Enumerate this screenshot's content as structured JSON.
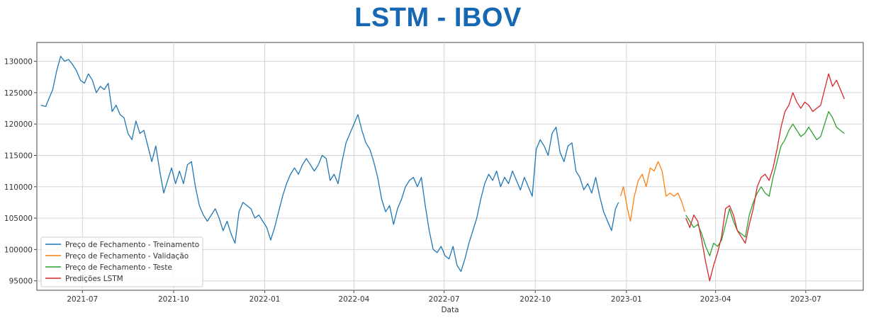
{
  "title": "LSTM - IBOV",
  "chart_data": {
    "type": "line",
    "xlabel": "Data",
    "ylabel": "",
    "ylim": [
      93500,
      133000
    ],
    "x_range": [
      "2021-05-16",
      "2023-08-28"
    ],
    "grid": true,
    "legend_position": "lower-left",
    "yticks": [
      95000,
      100000,
      105000,
      110000,
      115000,
      120000,
      125000,
      130000
    ],
    "xticks": [
      {
        "date": "2021-07-01",
        "label": "2021-07"
      },
      {
        "date": "2021-10-01",
        "label": "2021-10"
      },
      {
        "date": "2022-01-01",
        "label": "2022-01"
      },
      {
        "date": "2022-04-01",
        "label": "2022-04"
      },
      {
        "date": "2022-07-01",
        "label": "2022-07"
      },
      {
        "date": "2022-10-01",
        "label": "2022-10"
      },
      {
        "date": "2023-01-01",
        "label": "2023-01"
      },
      {
        "date": "2023-04-01",
        "label": "2023-04"
      },
      {
        "date": "2023-07-01",
        "label": "2023-07"
      }
    ],
    "series": [
      {
        "name": "Preço de Fechamento - Treinamento",
        "color": "#1f77b4",
        "points": [
          [
            "2021-05-20",
            123000
          ],
          [
            "2021-05-25",
            122800
          ],
          [
            "2021-05-28",
            124000
          ],
          [
            "2021-06-01",
            125500
          ],
          [
            "2021-06-05",
            128500
          ],
          [
            "2021-06-09",
            130800
          ],
          [
            "2021-06-13",
            130000
          ],
          [
            "2021-06-17",
            130300
          ],
          [
            "2021-06-21",
            129500
          ],
          [
            "2021-06-25",
            128500
          ],
          [
            "2021-06-29",
            127000
          ],
          [
            "2021-07-03",
            126500
          ],
          [
            "2021-07-07",
            128000
          ],
          [
            "2021-07-11",
            127000
          ],
          [
            "2021-07-15",
            125000
          ],
          [
            "2021-07-19",
            126000
          ],
          [
            "2021-07-23",
            125500
          ],
          [
            "2021-07-27",
            126500
          ],
          [
            "2021-07-31",
            122000
          ],
          [
            "2021-08-04",
            123000
          ],
          [
            "2021-08-08",
            121500
          ],
          [
            "2021-08-12",
            121000
          ],
          [
            "2021-08-16",
            118500
          ],
          [
            "2021-08-20",
            117500
          ],
          [
            "2021-08-24",
            120500
          ],
          [
            "2021-08-28",
            118500
          ],
          [
            "2021-09-01",
            119000
          ],
          [
            "2021-09-05",
            116500
          ],
          [
            "2021-09-09",
            114000
          ],
          [
            "2021-09-13",
            116500
          ],
          [
            "2021-09-17",
            112500
          ],
          [
            "2021-09-21",
            109000
          ],
          [
            "2021-09-25",
            111000
          ],
          [
            "2021-09-29",
            113000
          ],
          [
            "2021-10-03",
            110500
          ],
          [
            "2021-10-07",
            112500
          ],
          [
            "2021-10-11",
            110500
          ],
          [
            "2021-10-15",
            113500
          ],
          [
            "2021-10-19",
            114000
          ],
          [
            "2021-10-23",
            110000
          ],
          [
            "2021-10-27",
            107000
          ],
          [
            "2021-10-31",
            105500
          ],
          [
            "2021-11-04",
            104500
          ],
          [
            "2021-11-08",
            105500
          ],
          [
            "2021-11-12",
            106500
          ],
          [
            "2021-11-16",
            105000
          ],
          [
            "2021-11-20",
            103000
          ],
          [
            "2021-11-24",
            104500
          ],
          [
            "2021-11-28",
            102500
          ],
          [
            "2021-12-02",
            101000
          ],
          [
            "2021-12-06",
            106000
          ],
          [
            "2021-12-10",
            107500
          ],
          [
            "2021-12-14",
            107000
          ],
          [
            "2021-12-18",
            106500
          ],
          [
            "2021-12-22",
            105000
          ],
          [
            "2021-12-26",
            105500
          ],
          [
            "2021-12-30",
            104500
          ],
          [
            "2022-01-03",
            103500
          ],
          [
            "2022-01-07",
            101500
          ],
          [
            "2022-01-11",
            103500
          ],
          [
            "2022-01-15",
            106000
          ],
          [
            "2022-01-19",
            108500
          ],
          [
            "2022-01-23",
            110500
          ],
          [
            "2022-01-27",
            112000
          ],
          [
            "2022-01-31",
            113000
          ],
          [
            "2022-02-04",
            112000
          ],
          [
            "2022-02-08",
            113500
          ],
          [
            "2022-02-12",
            114500
          ],
          [
            "2022-02-16",
            113500
          ],
          [
            "2022-02-20",
            112500
          ],
          [
            "2022-02-24",
            113500
          ],
          [
            "2022-02-28",
            115000
          ],
          [
            "2022-03-04",
            114500
          ],
          [
            "2022-03-08",
            111000
          ],
          [
            "2022-03-12",
            112000
          ],
          [
            "2022-03-16",
            110500
          ],
          [
            "2022-03-20",
            114000
          ],
          [
            "2022-03-24",
            117000
          ],
          [
            "2022-03-28",
            118500
          ],
          [
            "2022-04-01",
            120000
          ],
          [
            "2022-04-05",
            121500
          ],
          [
            "2022-04-09",
            119000
          ],
          [
            "2022-04-13",
            117000
          ],
          [
            "2022-04-17",
            116000
          ],
          [
            "2022-04-21",
            114000
          ],
          [
            "2022-04-25",
            111500
          ],
          [
            "2022-04-29",
            108000
          ],
          [
            "2022-05-03",
            106000
          ],
          [
            "2022-05-07",
            107000
          ],
          [
            "2022-05-11",
            104000
          ],
          [
            "2022-05-15",
            106500
          ],
          [
            "2022-05-19",
            108000
          ],
          [
            "2022-05-23",
            110000
          ],
          [
            "2022-05-27",
            111000
          ],
          [
            "2022-05-31",
            111500
          ],
          [
            "2022-06-04",
            110000
          ],
          [
            "2022-06-08",
            111500
          ],
          [
            "2022-06-12",
            107000
          ],
          [
            "2022-06-16",
            103000
          ],
          [
            "2022-06-20",
            100000
          ],
          [
            "2022-06-24",
            99500
          ],
          [
            "2022-06-28",
            100500
          ],
          [
            "2022-07-02",
            99000
          ],
          [
            "2022-07-06",
            98500
          ],
          [
            "2022-07-10",
            100500
          ],
          [
            "2022-07-14",
            97500
          ],
          [
            "2022-07-18",
            96500
          ],
          [
            "2022-07-22",
            98500
          ],
          [
            "2022-07-26",
            101000
          ],
          [
            "2022-07-30",
            103000
          ],
          [
            "2022-08-03",
            105000
          ],
          [
            "2022-08-07",
            108000
          ],
          [
            "2022-08-11",
            110500
          ],
          [
            "2022-08-15",
            112000
          ],
          [
            "2022-08-19",
            111000
          ],
          [
            "2022-08-23",
            112500
          ],
          [
            "2022-08-27",
            110000
          ],
          [
            "2022-08-31",
            111500
          ],
          [
            "2022-09-04",
            110500
          ],
          [
            "2022-09-08",
            112500
          ],
          [
            "2022-09-12",
            111000
          ],
          [
            "2022-09-16",
            109500
          ],
          [
            "2022-09-20",
            111500
          ],
          [
            "2022-09-24",
            110000
          ],
          [
            "2022-09-28",
            108500
          ],
          [
            "2022-10-02",
            116000
          ],
          [
            "2022-10-06",
            117500
          ],
          [
            "2022-10-10",
            116500
          ],
          [
            "2022-10-14",
            115000
          ],
          [
            "2022-10-18",
            118500
          ],
          [
            "2022-10-22",
            119500
          ],
          [
            "2022-10-26",
            115500
          ],
          [
            "2022-10-30",
            114000
          ],
          [
            "2022-11-03",
            116500
          ],
          [
            "2022-11-07",
            117000
          ],
          [
            "2022-11-11",
            112500
          ],
          [
            "2022-11-15",
            111500
          ],
          [
            "2022-11-19",
            109500
          ],
          [
            "2022-11-23",
            110500
          ],
          [
            "2022-11-27",
            109000
          ],
          [
            "2022-12-01",
            111500
          ],
          [
            "2022-12-05",
            108500
          ],
          [
            "2022-12-09",
            106000
          ],
          [
            "2022-12-13",
            104500
          ],
          [
            "2022-12-17",
            103000
          ],
          [
            "2022-12-21",
            106500
          ],
          [
            "2022-12-24",
            107500
          ]
        ]
      },
      {
        "name": "Preço de Fechamento - Validação",
        "color": "#ff7f0e",
        "points": [
          [
            "2022-12-26",
            108500
          ],
          [
            "2022-12-29",
            110000
          ],
          [
            "2023-01-02",
            106500
          ],
          [
            "2023-01-05",
            104500
          ],
          [
            "2023-01-09",
            108500
          ],
          [
            "2023-01-13",
            111000
          ],
          [
            "2023-01-17",
            112000
          ],
          [
            "2023-01-21",
            110000
          ],
          [
            "2023-01-25",
            113000
          ],
          [
            "2023-01-29",
            112500
          ],
          [
            "2023-02-02",
            114000
          ],
          [
            "2023-02-06",
            112500
          ],
          [
            "2023-02-10",
            108500
          ],
          [
            "2023-02-14",
            109000
          ],
          [
            "2023-02-18",
            108500
          ],
          [
            "2023-02-22",
            109000
          ],
          [
            "2023-02-26",
            107500
          ],
          [
            "2023-03-01",
            106000
          ]
        ]
      },
      {
        "name": "Preço de Fechamento - Teste",
        "color": "#2ca02c",
        "points": [
          [
            "2023-03-02",
            105500
          ],
          [
            "2023-03-06",
            104500
          ],
          [
            "2023-03-10",
            103500
          ],
          [
            "2023-03-14",
            104000
          ],
          [
            "2023-03-18",
            102500
          ],
          [
            "2023-03-22",
            100500
          ],
          [
            "2023-03-26",
            99000
          ],
          [
            "2023-03-30",
            101000
          ],
          [
            "2023-04-03",
            100500
          ],
          [
            "2023-04-07",
            101500
          ],
          [
            "2023-04-11",
            104000
          ],
          [
            "2023-04-15",
            106500
          ],
          [
            "2023-04-19",
            104500
          ],
          [
            "2023-04-23",
            103000
          ],
          [
            "2023-04-27",
            102500
          ],
          [
            "2023-05-01",
            102000
          ],
          [
            "2023-05-05",
            105500
          ],
          [
            "2023-05-09",
            107500
          ],
          [
            "2023-05-13",
            109000
          ],
          [
            "2023-05-17",
            110000
          ],
          [
            "2023-05-21",
            109000
          ],
          [
            "2023-05-25",
            108500
          ],
          [
            "2023-05-29",
            111500
          ],
          [
            "2023-06-02",
            114000
          ],
          [
            "2023-06-06",
            116500
          ],
          [
            "2023-06-10",
            117500
          ],
          [
            "2023-06-14",
            119000
          ],
          [
            "2023-06-18",
            120000
          ],
          [
            "2023-06-22",
            119000
          ],
          [
            "2023-06-26",
            118000
          ],
          [
            "2023-06-30",
            118500
          ],
          [
            "2023-07-04",
            119500
          ],
          [
            "2023-07-08",
            118500
          ],
          [
            "2023-07-12",
            117500
          ],
          [
            "2023-07-16",
            118000
          ],
          [
            "2023-07-20",
            120000
          ],
          [
            "2023-07-24",
            122000
          ],
          [
            "2023-07-28",
            121000
          ],
          [
            "2023-08-01",
            119500
          ],
          [
            "2023-08-05",
            119000
          ],
          [
            "2023-08-09",
            118500
          ]
        ]
      },
      {
        "name": "Predições LSTM",
        "color": "#d62728",
        "points": [
          [
            "2023-03-02",
            105000
          ],
          [
            "2023-03-06",
            103500
          ],
          [
            "2023-03-10",
            105500
          ],
          [
            "2023-03-14",
            104500
          ],
          [
            "2023-03-18",
            101500
          ],
          [
            "2023-03-22",
            98000
          ],
          [
            "2023-03-26",
            95000
          ],
          [
            "2023-03-30",
            97500
          ],
          [
            "2023-04-03",
            99500
          ],
          [
            "2023-04-07",
            102000
          ],
          [
            "2023-04-11",
            106500
          ],
          [
            "2023-04-15",
            107000
          ],
          [
            "2023-04-19",
            105500
          ],
          [
            "2023-04-23",
            103000
          ],
          [
            "2023-04-27",
            102000
          ],
          [
            "2023-05-01",
            101000
          ],
          [
            "2023-05-05",
            104000
          ],
          [
            "2023-05-09",
            106500
          ],
          [
            "2023-05-13",
            110000
          ],
          [
            "2023-05-17",
            111500
          ],
          [
            "2023-05-21",
            112000
          ],
          [
            "2023-05-25",
            111000
          ],
          [
            "2023-05-29",
            113000
          ],
          [
            "2023-06-02",
            116000
          ],
          [
            "2023-06-06",
            119500
          ],
          [
            "2023-06-10",
            122000
          ],
          [
            "2023-06-14",
            123000
          ],
          [
            "2023-06-18",
            125000
          ],
          [
            "2023-06-22",
            123500
          ],
          [
            "2023-06-26",
            122500
          ],
          [
            "2023-06-30",
            123500
          ],
          [
            "2023-07-04",
            123000
          ],
          [
            "2023-07-08",
            122000
          ],
          [
            "2023-07-12",
            122500
          ],
          [
            "2023-07-16",
            123000
          ],
          [
            "2023-07-20",
            125500
          ],
          [
            "2023-07-24",
            128000
          ],
          [
            "2023-07-28",
            126000
          ],
          [
            "2023-08-01",
            127000
          ],
          [
            "2023-08-05",
            125500
          ],
          [
            "2023-08-09",
            124000
          ]
        ]
      }
    ]
  }
}
